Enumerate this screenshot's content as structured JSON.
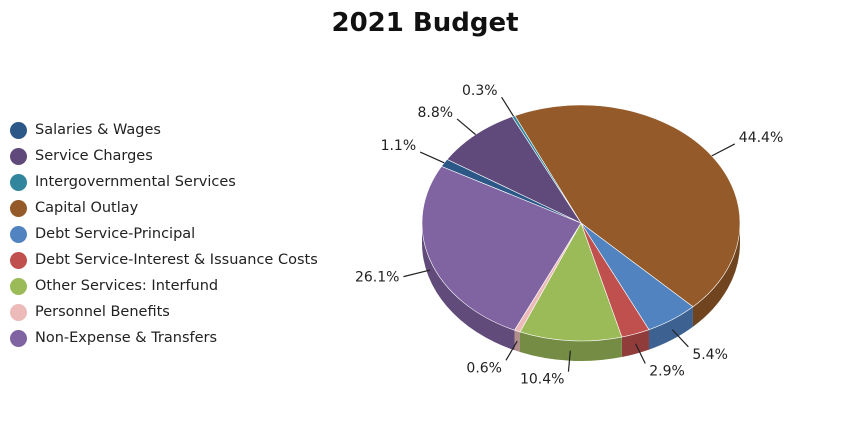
{
  "chart_data": {
    "type": "pie",
    "title": "2021 Budget",
    "legend_position": "left",
    "three_d": true,
    "slices": [
      {
        "label": "Capital Outlay",
        "value": 44.4,
        "display": "44.4%",
        "color": "#955A29"
      },
      {
        "label": "Debt Service-Principal",
        "value": 5.4,
        "display": "5.4%",
        "color": "#5183C1"
      },
      {
        "label": "Debt Service-Interest & Issuance Costs",
        "value": 2.9,
        "display": "2.9%",
        "color": "#C0504D"
      },
      {
        "label": "Other Services:  Interfund",
        "value": 10.4,
        "display": "10.4%",
        "color": "#9BBB59"
      },
      {
        "label": "Personnel Benefits",
        "value": 0.6,
        "display": "0.6%",
        "color": "#EBBAB9"
      },
      {
        "label": "Non-Expense & Transfers",
        "value": 26.1,
        "display": "26.1%",
        "color": "#8064A2"
      },
      {
        "label": "Salaries & Wages",
        "value": 1.1,
        "display": "1.1%",
        "color": "#2C5887"
      },
      {
        "label": "Service Charges",
        "value": 8.8,
        "display": "8.8%",
        "color": "#604A7B"
      },
      {
        "label": "Intergovernmental Services",
        "value": 0.3,
        "display": "0.3%",
        "color": "#31859C"
      }
    ],
    "legend": [
      {
        "label": "Salaries & Wages",
        "color": "#2C5887"
      },
      {
        "label": "Service Charges",
        "color": "#604A7B"
      },
      {
        "label": "Intergovernmental Services",
        "color": "#31859C"
      },
      {
        "label": "Capital Outlay",
        "color": "#955A29"
      },
      {
        "label": "Debt Service-Principal",
        "color": "#5183C1"
      },
      {
        "label": "Debt Service-Interest & Issuance Costs",
        "color": "#C0504D"
      },
      {
        "label": "Other Services:  Interfund",
        "color": "#9BBB59"
      },
      {
        "label": "Personnel Benefits",
        "color": "#EBBAB9"
      },
      {
        "label": "Non-Expense & Transfers",
        "color": "#8064A2"
      }
    ]
  }
}
